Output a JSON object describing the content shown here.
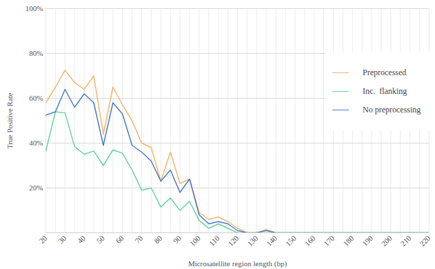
{
  "chart_data": {
    "type": "line",
    "x_label": "Microsatellite region length (bp)",
    "y_label": "True Positive Rate",
    "x": [
      20,
      25,
      30,
      35,
      40,
      45,
      50,
      55,
      60,
      65,
      70,
      75,
      80,
      85,
      90,
      95,
      100,
      105,
      110,
      115,
      120,
      125,
      130,
      135,
      140,
      145,
      150,
      155,
      160,
      165,
      170,
      175,
      180,
      185,
      190,
      195,
      200,
      205,
      210,
      215,
      220
    ],
    "series": [
      {
        "name": "Preprocessed",
        "color": "#f5b46a",
        "values": [
          58,
          65,
          72.5,
          67,
          64,
          70,
          44,
          65,
          57,
          50,
          40,
          38,
          23,
          36,
          22,
          24,
          9,
          6,
          7,
          5,
          2,
          0,
          0,
          1.5,
          0,
          0,
          0,
          0,
          0,
          0,
          0,
          0,
          0,
          0,
          0,
          0,
          0,
          0,
          0,
          0,
          0
        ]
      },
      {
        "name": "Inc.  flanking",
        "color": "#62d3a1",
        "values": [
          36.5,
          54,
          53.5,
          38.5,
          35,
          36.5,
          30,
          37,
          35.5,
          28,
          19,
          20,
          11.5,
          15.5,
          10,
          14,
          5.5,
          2,
          4,
          2,
          0,
          0,
          0,
          0,
          0,
          0,
          0,
          0,
          0,
          0,
          0,
          0,
          0,
          0,
          0,
          0,
          0,
          0,
          0,
          0,
          0
        ]
      },
      {
        "name": "No preprocessing",
        "color": "#4a7bc6",
        "values": [
          52.5,
          54,
          64,
          56,
          62,
          58,
          39,
          58,
          53,
          39,
          36,
          32,
          23,
          28,
          18,
          24,
          8,
          4,
          5,
          4,
          1,
          0,
          0,
          1,
          0,
          0,
          0,
          0,
          0,
          0,
          0,
          0,
          0,
          0,
          0,
          0,
          0,
          0,
          0,
          0,
          0
        ]
      }
    ],
    "xlim": [
      20,
      220
    ],
    "xticks": [
      20,
      30,
      40,
      50,
      60,
      70,
      80,
      90,
      100,
      110,
      120,
      130,
      140,
      150,
      160,
      170,
      180,
      190,
      200,
      210,
      220
    ],
    "ylim": [
      0,
      100
    ],
    "yticks": [
      {
        "value": 20,
        "label": "20%"
      },
      {
        "value": 40,
        "label": "40%"
      },
      {
        "value": 60,
        "label": "60%"
      },
      {
        "value": 80,
        "label": "80%"
      },
      {
        "value": 100,
        "label": "100%"
      }
    ],
    "grid": true,
    "legend": "right"
  }
}
